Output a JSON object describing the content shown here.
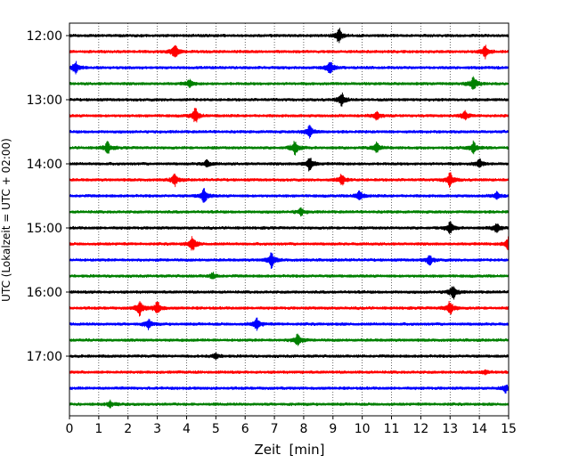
{
  "chart_data": {
    "type": "line",
    "title": "",
    "xlabel": "Zeit  [min]",
    "ylabel": "UTC (Lokalzeit = UTC + 02:00)",
    "xlim": [
      0,
      15
    ],
    "x_ticks": [
      "0",
      "1",
      "2",
      "3",
      "4",
      "5",
      "6",
      "7",
      "8",
      "9",
      "10",
      "11",
      "12",
      "13",
      "14",
      "15"
    ],
    "y_tick_labels": [
      "12:00",
      "13:00",
      "14:00",
      "15:00",
      "16:00",
      "17:00"
    ],
    "grid": "vertical dotted",
    "trace_colors": [
      "#000000",
      "#ff0000",
      "#0000ff",
      "#008000"
    ],
    "traces": [
      {
        "start": "12:00",
        "events": [
          [
            9.2,
            1.0
          ]
        ]
      },
      {
        "start": "12:15",
        "events": [
          [
            3.6,
            1.0
          ],
          [
            14.2,
            0.9
          ]
        ]
      },
      {
        "start": "12:30",
        "events": [
          [
            0.2,
            0.8
          ],
          [
            8.9,
            1.0
          ]
        ]
      },
      {
        "start": "12:45",
        "events": [
          [
            4.1,
            0.5
          ],
          [
            13.8,
            1.0
          ]
        ]
      },
      {
        "start": "13:00",
        "events": [
          [
            9.3,
            0.9
          ]
        ]
      },
      {
        "start": "13:15",
        "events": [
          [
            4.3,
            1.0
          ],
          [
            10.5,
            0.6
          ],
          [
            13.5,
            0.6
          ]
        ]
      },
      {
        "start": "13:30",
        "events": [
          [
            8.2,
            0.9
          ]
        ]
      },
      {
        "start": "13:45",
        "events": [
          [
            1.3,
            0.8
          ],
          [
            7.7,
            1.0
          ],
          [
            10.5,
            0.8
          ],
          [
            13.8,
            0.8
          ]
        ]
      },
      {
        "start": "14:00",
        "events": [
          [
            8.2,
            1.0
          ],
          [
            4.7,
            0.5
          ],
          [
            14.0,
            0.6
          ]
        ]
      },
      {
        "start": "14:15",
        "events": [
          [
            3.6,
            0.8
          ],
          [
            9.3,
            0.8
          ],
          [
            13.0,
            1.0
          ]
        ]
      },
      {
        "start": "14:30",
        "events": [
          [
            4.6,
            1.0
          ],
          [
            9.9,
            0.7
          ],
          [
            14.6,
            0.5
          ]
        ]
      },
      {
        "start": "14:45",
        "events": [
          [
            7.9,
            0.5
          ]
        ]
      },
      {
        "start": "15:00",
        "events": [
          [
            13.0,
            0.8
          ],
          [
            14.6,
            0.7
          ]
        ]
      },
      {
        "start": "15:15",
        "events": [
          [
            4.2,
            1.0
          ],
          [
            15.0,
            1.0
          ]
        ]
      },
      {
        "start": "15:30",
        "events": [
          [
            6.9,
            1.0
          ],
          [
            12.3,
            0.7
          ]
        ]
      },
      {
        "start": "15:45",
        "events": [
          [
            4.9,
            0.4
          ]
        ]
      },
      {
        "start": "16:00",
        "events": [
          [
            13.1,
            1.0
          ]
        ]
      },
      {
        "start": "16:15",
        "events": [
          [
            2.4,
            1.0
          ],
          [
            3.0,
            0.9
          ],
          [
            13.0,
            1.0
          ]
        ]
      },
      {
        "start": "16:30",
        "events": [
          [
            2.7,
            0.7
          ],
          [
            6.4,
            0.8
          ]
        ]
      },
      {
        "start": "16:45",
        "events": [
          [
            7.8,
            0.9
          ]
        ]
      },
      {
        "start": "17:00",
        "events": [
          [
            5.0,
            0.4
          ]
        ]
      },
      {
        "start": "17:15",
        "events": [
          [
            14.2,
            0.3
          ]
        ]
      },
      {
        "start": "17:30",
        "events": [
          [
            14.9,
            0.5
          ]
        ]
      },
      {
        "start": "17:45",
        "events": [
          [
            1.4,
            0.4
          ]
        ]
      }
    ]
  }
}
